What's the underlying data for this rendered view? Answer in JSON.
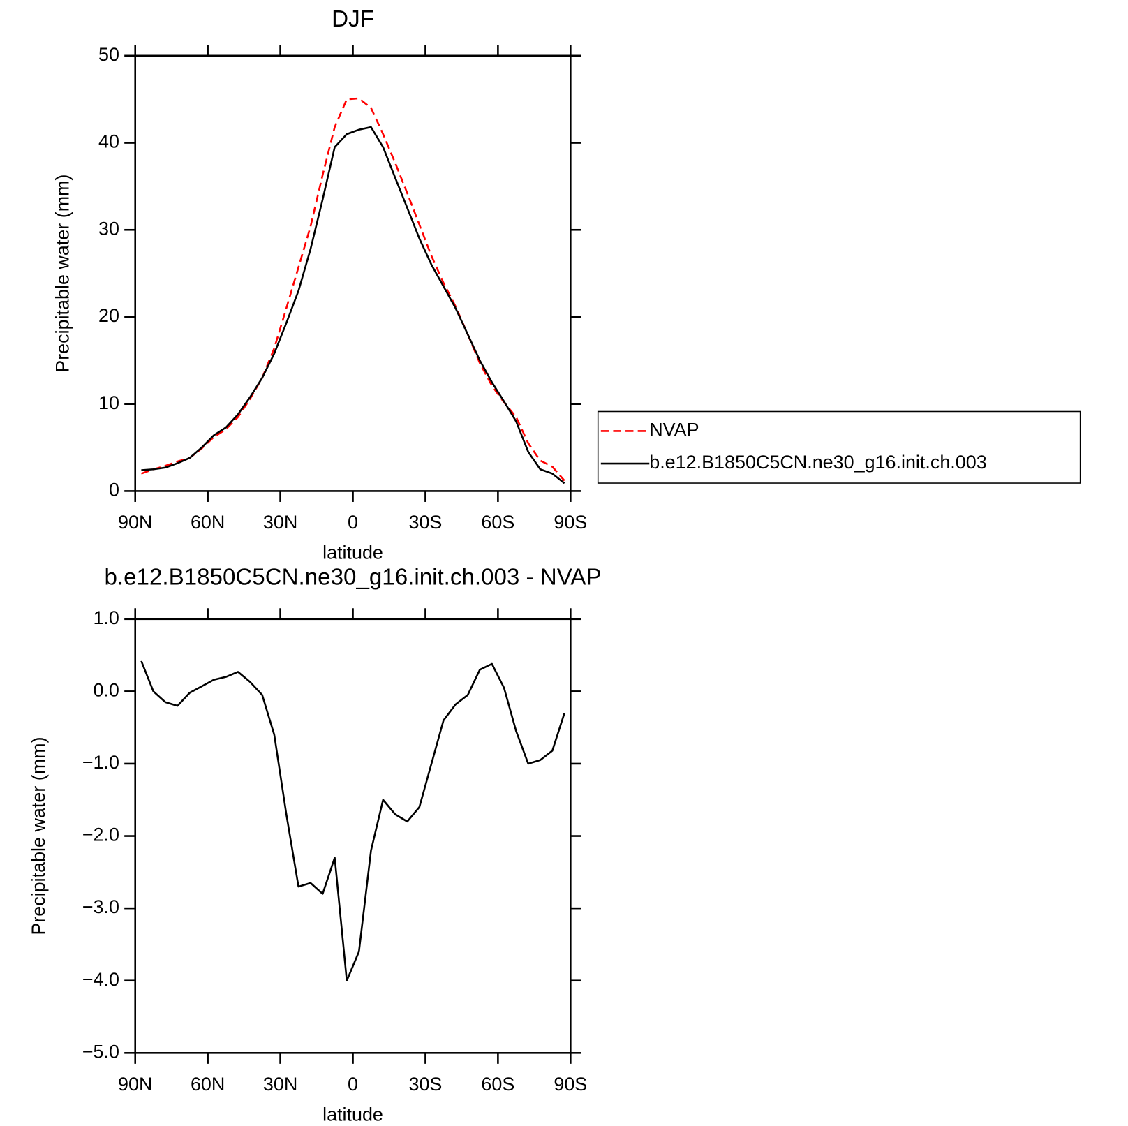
{
  "chart_data": [
    {
      "type": "line",
      "title": "DJF",
      "xlabel": "latitude",
      "ylabel": "Precipitable water (mm)",
      "x": [
        87.5,
        82.5,
        77.5,
        72.5,
        67.5,
        62.5,
        57.5,
        52.5,
        47.5,
        42.5,
        37.5,
        32.5,
        27.5,
        22.5,
        17.5,
        12.5,
        7.5,
        2.5,
        -2.5,
        -7.5,
        -12.5,
        -17.5,
        -22.5,
        -27.5,
        -32.5,
        -37.5,
        -42.5,
        -47.5,
        -52.5,
        -57.5,
        -62.5,
        -67.5,
        -72.5,
        -77.5,
        -82.5,
        -87.5
      ],
      "series": [
        {
          "name": "NVAP",
          "color": "#ff0000",
          "dash": true,
          "values": [
            2.0,
            2.5,
            2.9,
            3.4,
            3.8,
            4.9,
            6.2,
            7.1,
            8.5,
            10.6,
            13.0,
            16.4,
            21.0,
            25.7,
            30.4,
            36.3,
            41.8,
            45.0,
            45.1,
            44.0,
            41.0,
            37.7,
            34.2,
            30.6,
            27.0,
            23.9,
            21.2,
            18.0,
            14.7,
            12.1,
            10.2,
            8.5,
            5.5,
            3.5,
            2.8,
            1.2
          ]
        },
        {
          "name": "b.e12.B1850C5CN.ne30_g16.init.ch.003",
          "color": "#000000",
          "dash": false,
          "values": [
            2.4,
            2.5,
            2.7,
            3.2,
            3.8,
            5.0,
            6.4,
            7.3,
            8.8,
            10.8,
            13.0,
            15.8,
            19.3,
            23.0,
            27.8,
            33.5,
            39.5,
            41.0,
            41.5,
            41.8,
            39.5,
            36.0,
            32.5,
            29.0,
            26.0,
            23.5,
            21.0,
            18.0,
            15.0,
            12.5,
            10.3,
            8.0,
            4.5,
            2.5,
            2.0,
            0.9
          ]
        }
      ],
      "xlim": [
        90,
        -90
      ],
      "xticks": [
        {
          "value": 90,
          "label": "90N"
        },
        {
          "value": 60,
          "label": "60N"
        },
        {
          "value": 30,
          "label": "30N"
        },
        0,
        {
          "value": -30,
          "label": "30S"
        },
        {
          "value": -60,
          "label": "60S"
        },
        {
          "value": -90,
          "label": "90S"
        }
      ],
      "ylim": [
        0,
        50
      ],
      "yticks": [
        0,
        10,
        20,
        30,
        40,
        50
      ],
      "legend": "right"
    },
    {
      "type": "line",
      "title": "b.e12.B1850C5CN.ne30_g16.init.ch.003 - NVAP",
      "xlabel": "latitude",
      "ylabel": "Precipitable water (mm)",
      "x": [
        87.5,
        82.5,
        77.5,
        72.5,
        67.5,
        62.5,
        57.5,
        52.5,
        47.5,
        42.5,
        37.5,
        32.5,
        27.5,
        22.5,
        17.5,
        12.5,
        7.5,
        2.5,
        -2.5,
        -7.5,
        -12.5,
        -17.5,
        -22.5,
        -27.5,
        -32.5,
        -37.5,
        -42.5,
        -47.5,
        -52.5,
        -57.5,
        -62.5,
        -67.5,
        -72.5,
        -77.5,
        -82.5,
        -87.5
      ],
      "series": [
        {
          "color": "#000000",
          "dash": false,
          "values": [
            0.42,
            0.0,
            -0.15,
            -0.2,
            -0.02,
            0.07,
            0.16,
            0.2,
            0.27,
            0.13,
            -0.05,
            -0.6,
            -1.7,
            -2.7,
            -2.65,
            -2.8,
            -2.3,
            -4.0,
            -3.6,
            -2.2,
            -1.5,
            -1.7,
            -1.8,
            -1.6,
            -1.0,
            -0.4,
            -0.18,
            -0.05,
            0.3,
            0.38,
            0.05,
            -0.55,
            -1.0,
            -0.95,
            -0.82,
            -0.3
          ]
        }
      ],
      "xlim": [
        90,
        -90
      ],
      "xticks": [
        {
          "value": 90,
          "label": "90N"
        },
        {
          "value": 60,
          "label": "60N"
        },
        {
          "value": 30,
          "label": "30N"
        },
        0,
        {
          "value": -30,
          "label": "30S"
        },
        {
          "value": -60,
          "label": "60S"
        },
        {
          "value": -90,
          "label": "90S"
        }
      ],
      "ylim": [
        -5,
        1
      ],
      "yticks": [
        {
          "value": -5,
          "label": "−5.0"
        },
        {
          "value": -4,
          "label": "−4.0"
        },
        {
          "value": -3,
          "label": "−3.0"
        },
        {
          "value": -2,
          "label": "−2.0"
        },
        {
          "value": -1,
          "label": "−1.0"
        },
        {
          "value": 0,
          "label": "0.0"
        },
        {
          "value": 1,
          "label": "1.0"
        }
      ]
    }
  ]
}
